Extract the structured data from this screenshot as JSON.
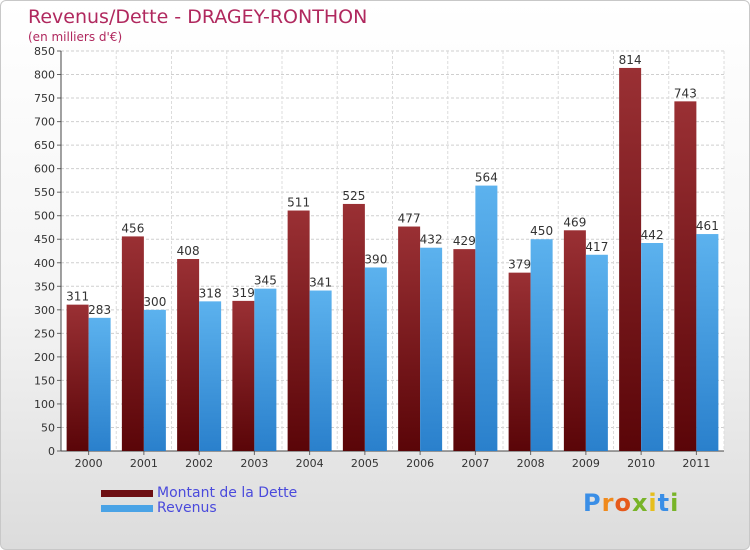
{
  "header": {
    "title": "Revenus/Dette - DRAGEY-RONTHON",
    "subtitle": "(en milliers d'€)"
  },
  "legend": {
    "items": [
      {
        "label": "Montant de la Dette",
        "color": "#6e0e12"
      },
      {
        "label": "Revenus",
        "color": "#4aa3e6"
      }
    ]
  },
  "logo": {
    "letters": [
      "P",
      "r",
      "o",
      "x",
      "i",
      "t",
      "i"
    ],
    "colors": [
      "#3a8ee6",
      "#f08a1c",
      "#e65a1c",
      "#78b428",
      "#e6be1c",
      "#3a8ee6",
      "#78b428"
    ]
  },
  "chart_data": {
    "type": "bar",
    "title": "Revenus/Dette - DRAGEY-RONTHON",
    "subtitle": "(en milliers d'€)",
    "xlabel": "",
    "ylabel": "",
    "ylim": [
      0,
      850
    ],
    "ytick_step": 50,
    "grid": true,
    "legend_position": "bottom-left",
    "categories": [
      "2000",
      "2001",
      "2002",
      "2003",
      "2004",
      "2005",
      "2006",
      "2007",
      "2008",
      "2009",
      "2010",
      "2011"
    ],
    "series": [
      {
        "name": "Montant de la Dette",
        "color": "#7a1a1e",
        "values": [
          311,
          456,
          408,
          319,
          511,
          525,
          477,
          429,
          379,
          469,
          814,
          743
        ]
      },
      {
        "name": "Revenus",
        "color": "#4aa3e6",
        "values": [
          283,
          300,
          318,
          345,
          341,
          390,
          432,
          564,
          450,
          417,
          442,
          461
        ]
      }
    ]
  }
}
